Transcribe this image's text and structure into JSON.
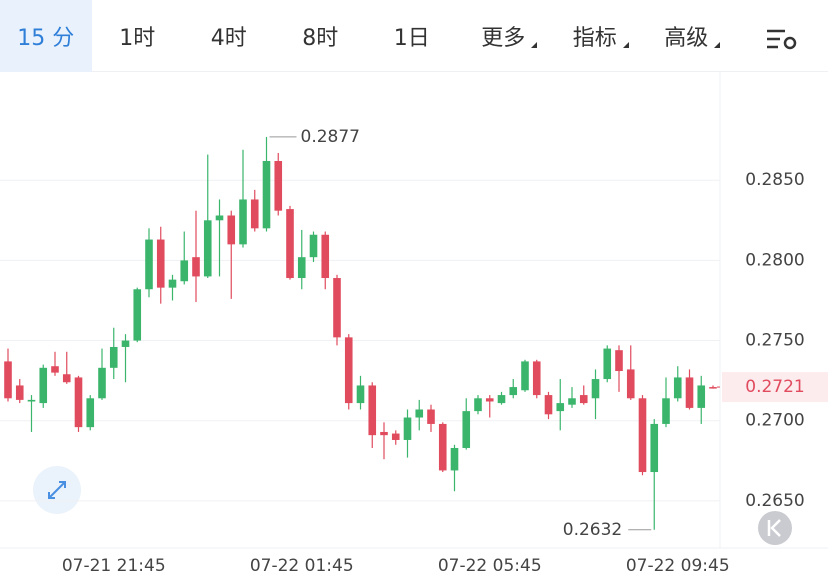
{
  "tabs": [
    {
      "label": "15 分"
    },
    {
      "label": "1时"
    },
    {
      "label": "4时"
    },
    {
      "label": "8时"
    },
    {
      "label": "1日"
    },
    {
      "label": "更多",
      "dropdown": true
    },
    {
      "label": "指标",
      "dropdown": true
    },
    {
      "label": "高级",
      "dropdown": true
    }
  ],
  "active_tab": 0,
  "chart_data": {
    "type": "candlestick",
    "categories": [
      null,
      null,
      null,
      null,
      null,
      null,
      null,
      null,
      null,
      "07-21 21:45",
      null,
      null,
      null,
      null,
      null,
      null,
      null,
      null,
      null,
      null,
      null,
      null,
      null,
      null,
      null,
      "07-22 01:45",
      null,
      null,
      null,
      null,
      null,
      null,
      null,
      null,
      null,
      null,
      null,
      null,
      null,
      null,
      null,
      "07-22 05:45",
      null,
      null,
      null,
      null,
      null,
      null,
      null,
      null,
      null,
      null,
      null,
      null,
      null,
      null,
      null,
      "07-22 09:45",
      null,
      null,
      null
    ],
    "open": [
      0.2737,
      0.2722,
      0.2712,
      0.2711,
      0.2734,
      0.2729,
      0.2727,
      0.2696,
      0.2714,
      0.2733,
      0.2746,
      0.275,
      0.2782,
      0.2813,
      0.2783,
      0.2787,
      0.2802,
      0.279,
      0.2825,
      0.2828,
      0.281,
      0.2838,
      0.282,
      0.2862,
      0.2832,
      0.2789,
      0.2802,
      0.2816,
      0.2789,
      0.2752,
      0.2711,
      0.2722,
      0.2693,
      0.2692,
      0.2688,
      0.2702,
      0.2707,
      0.2698,
      0.2669,
      0.2683,
      0.2706,
      0.2714,
      0.2711,
      0.2716,
      0.2719,
      0.2737,
      0.2716,
      0.2706,
      0.271,
      0.2716,
      0.2714,
      0.2726,
      0.2744,
      0.2732,
      0.2714,
      0.2668,
      0.2698,
      0.2714,
      0.2727,
      0.2708,
      0.2721
    ],
    "high": [
      0.2745,
      0.2726,
      0.2716,
      0.2735,
      0.2743,
      0.2743,
      0.2728,
      0.2716,
      0.2745,
      0.2758,
      0.2754,
      0.2783,
      0.282,
      0.2821,
      0.2791,
      0.2818,
      0.2831,
      0.2866,
      0.2838,
      0.2831,
      0.2869,
      0.2844,
      0.2877,
      0.2867,
      0.2834,
      0.2819,
      0.2818,
      0.2818,
      0.2791,
      0.2754,
      0.2728,
      0.2724,
      0.2699,
      0.2694,
      0.2707,
      0.2713,
      0.271,
      0.2699,
      0.2685,
      0.2714,
      0.2716,
      0.2716,
      0.2718,
      0.2726,
      0.2738,
      0.2738,
      0.2718,
      0.2726,
      0.2721,
      0.2722,
      0.2732,
      0.2747,
      0.2747,
      0.2747,
      0.2716,
      0.2701,
      0.2727,
      0.2734,
      0.2732,
      0.2728,
      0.2722
    ],
    "low": [
      0.2712,
      0.2711,
      0.2693,
      0.2708,
      0.2728,
      0.2723,
      0.2693,
      0.2694,
      0.2713,
      0.2726,
      0.2724,
      0.2749,
      0.2777,
      0.2773,
      0.2775,
      0.2785,
      0.2774,
      0.2789,
      0.279,
      0.2776,
      0.2808,
      0.2818,
      0.2818,
      0.2828,
      0.2788,
      0.2782,
      0.2799,
      0.2782,
      0.2747,
      0.2707,
      0.2707,
      0.2683,
      0.2676,
      0.2685,
      0.2677,
      0.2694,
      0.2693,
      0.2668,
      0.2656,
      0.2682,
      0.2704,
      0.2702,
      0.271,
      0.2714,
      0.2718,
      0.2714,
      0.2701,
      0.2694,
      0.2708,
      0.271,
      0.2701,
      0.2724,
      0.2718,
      0.2713,
      0.2666,
      0.2632,
      0.2696,
      0.2712,
      0.2707,
      0.2698,
      0.272
    ],
    "close": [
      0.2714,
      0.2713,
      0.2713,
      0.2733,
      0.273,
      0.2724,
      0.2696,
      0.2714,
      0.2733,
      0.2746,
      0.275,
      0.2782,
      0.2813,
      0.2783,
      0.2788,
      0.28,
      0.279,
      0.2825,
      0.2828,
      0.281,
      0.2838,
      0.282,
      0.2862,
      0.2831,
      0.2789,
      0.2802,
      0.2816,
      0.2789,
      0.2752,
      0.2711,
      0.2722,
      0.2691,
      0.2691,
      0.2688,
      0.2702,
      0.2707,
      0.2698,
      0.2669,
      0.2683,
      0.2706,
      0.2714,
      0.2712,
      0.2716,
      0.2721,
      0.2737,
      0.2716,
      0.2704,
      0.2711,
      0.2714,
      0.2711,
      0.2726,
      0.2745,
      0.2731,
      0.2714,
      0.2668,
      0.2698,
      0.2714,
      0.2727,
      0.2708,
      0.2722,
      0.2721
    ],
    "up_color": "#3bb56c",
    "down_color": "#e04b5e",
    "ylim": [
      0.262,
      0.2915
    ],
    "yticks": [
      {
        "value": 0.285,
        "label": "0.2850"
      },
      {
        "value": 0.28,
        "label": "0.2800"
      },
      {
        "value": 0.275,
        "label": "0.2750"
      },
      {
        "value": 0.27,
        "label": "0.2700"
      },
      {
        "value": 0.265,
        "label": "0.2650"
      }
    ],
    "grid": true,
    "max_annotation": 0.2877,
    "min_annotation": 0.2632,
    "last_price": 0.2721
  }
}
